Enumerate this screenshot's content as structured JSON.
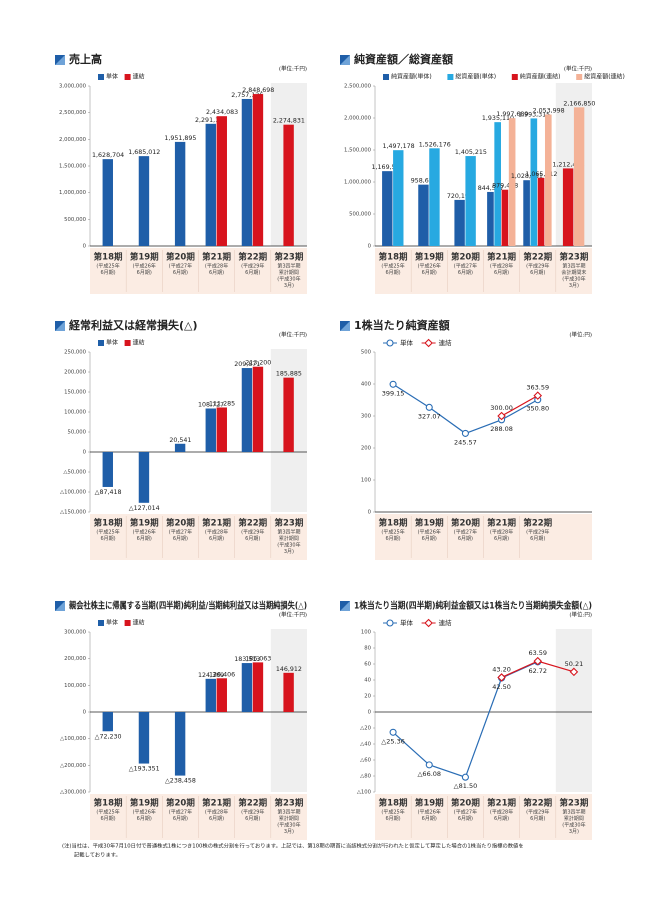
{
  "chart_data": [
    {
      "type": "bar",
      "title": "売上高",
      "unit": "(単位:千円)",
      "categories": [
        "第18期",
        "第19期",
        "第20期",
        "第21期",
        "第22期",
        "第23期"
      ],
      "sublabels": [
        [
          "(平成25年",
          "6月期)"
        ],
        [
          "(平成26年",
          "6月期)"
        ],
        [
          "(平成27年",
          "6月期)"
        ],
        [
          "(平成28年",
          "6月期)"
        ],
        [
          "(平成29年",
          "6月期)"
        ],
        [
          "第3四半期",
          "累計期間",
          "(平成30年",
          "3月)"
        ]
      ],
      "series": [
        {
          "name": "単体",
          "color": "#1f5ea8",
          "values": [
            1628704,
            1685012,
            1951895,
            2291152,
            2757126,
            null
          ],
          "value_labels": [
            "1,628,704",
            "1,685,012",
            "1,951,895",
            "2,291,152",
            "2,757,126",
            null
          ]
        },
        {
          "name": "連結",
          "color": "#d7141d",
          "values": [
            null,
            null,
            null,
            2434083,
            2848698,
            2274831
          ],
          "value_labels": [
            null,
            null,
            null,
            "2,434,083",
            "2,848,698",
            "2,274,831"
          ]
        }
      ],
      "ylim": [
        0,
        3000000
      ],
      "yticks": [
        0,
        {
          "value": 500000,
          "label": "500,000"
        },
        {
          "value": 1000000,
          "label": "1,000,000"
        },
        {
          "value": 1500000,
          "label": "1,500,000"
        },
        {
          "value": 2000000,
          "label": "2,000,000"
        },
        {
          "value": 2500000,
          "label": "2,500,000"
        },
        {
          "value": 3000000,
          "label": "3,000,000"
        }
      ]
    },
    {
      "type": "bar",
      "title": "純資産額／総資産額",
      "unit": "(単位:千円)",
      "categories": [
        "第18期",
        "第19期",
        "第20期",
        "第21期",
        "第22期",
        "第23期"
      ],
      "sublabels": [
        [
          "(平成25年",
          "6月期)"
        ],
        [
          "(平成26年",
          "6月期)"
        ],
        [
          "(平成27年",
          "6月期)"
        ],
        [
          "(平成28年",
          "6月期)"
        ],
        [
          "(平成29年",
          "6月期)"
        ],
        [
          "第3四半期",
          "会計期間末",
          "(平成30年",
          "3月)"
        ]
      ],
      "series": [
        {
          "name": "純資産額(単体)",
          "color": "#1f5ea8",
          "values": [
            1169564,
            958656,
            720198,
            844567,
            1028081,
            null
          ],
          "value_labels": [
            "1,169,564",
            "958,656",
            "720,198",
            "844,567",
            "1,028,081",
            null
          ]
        },
        {
          "name": "総資産額(単体)",
          "color": "#27a9e1",
          "values": [
            1497178,
            1526176,
            1405215,
            1935110,
            1993315,
            null
          ],
          "value_labels": [
            "1,497,178",
            "1,526,176",
            "1,405,215",
            "1,935,110",
            "1,993,315",
            null
          ]
        },
        {
          "name": "純資産額(連結)",
          "color": "#d7141d",
          "values": [
            null,
            null,
            null,
            879448,
            1065512,
            1212424
          ],
          "value_labels": [
            null,
            null,
            null,
            "879,448",
            "1,065,512",
            "1,212,424"
          ]
        },
        {
          "name": "総資産額(連結)",
          "color": "#f4b297",
          "values": [
            null,
            null,
            null,
            1997689,
            2053998,
            2166850
          ],
          "value_labels": [
            null,
            null,
            null,
            "1,997,689",
            "2,053,998",
            "2,166,850"
          ]
        }
      ],
      "ylim": [
        0,
        2500000
      ],
      "yticks": [
        0,
        {
          "value": 500000,
          "label": "500,000"
        },
        {
          "value": 1000000,
          "label": "1,000,000"
        },
        {
          "value": 1500000,
          "label": "1,500,000"
        },
        {
          "value": 2000000,
          "label": "2,000,000"
        },
        {
          "value": 2500000,
          "label": "2,500,000"
        }
      ]
    },
    {
      "type": "bar",
      "title": "経常利益又は経常損失(△)",
      "unit": "(単位:千円)",
      "categories": [
        "第18期",
        "第19期",
        "第20期",
        "第21期",
        "第22期",
        "第23期"
      ],
      "sublabels": [
        [
          "(平成25年",
          "6月期)"
        ],
        [
          "(平成26年",
          "6月期)"
        ],
        [
          "(平成27年",
          "6月期)"
        ],
        [
          "(平成28年",
          "6月期)"
        ],
        [
          "(平成29年",
          "6月期)"
        ],
        [
          "第3四半期",
          "累計期間",
          "(平成30年",
          "3月)"
        ]
      ],
      "series": [
        {
          "name": "単体",
          "color": "#1f5ea8",
          "values": [
            -87418,
            -127014,
            20541,
            108727,
            209871,
            null
          ],
          "value_labels": [
            "△87,418",
            "△127,014",
            "20,541",
            "108,727",
            "209,871",
            null
          ]
        },
        {
          "name": "連結",
          "color": "#d7141d",
          "values": [
            null,
            null,
            null,
            111285,
            213200,
            185885
          ],
          "value_labels": [
            null,
            null,
            null,
            "111,285",
            "213,200",
            "185,885"
          ]
        }
      ],
      "ylim": [
        -150000,
        250000
      ],
      "yticks": [
        {
          "value": -150000,
          "label": "△150,000"
        },
        {
          "value": -100000,
          "label": "△100,000"
        },
        {
          "value": -50000,
          "label": "△50,000"
        },
        0,
        {
          "value": 50000,
          "label": "50,000"
        },
        {
          "value": 100000,
          "label": "100,000"
        },
        {
          "value": 150000,
          "label": "150,000"
        },
        {
          "value": 200000,
          "label": "200,000"
        },
        {
          "value": 250000,
          "label": "250,000"
        }
      ]
    },
    {
      "type": "line",
      "title": "1株当たり純資産額",
      "unit": "(単位:円)",
      "categories": [
        "第18期",
        "第19期",
        "第20期",
        "第21期",
        "第22期"
      ],
      "sublabels": [
        [
          "(平成25年",
          "6月期)"
        ],
        [
          "(平成26年",
          "6月期)"
        ],
        [
          "(平成27年",
          "6月期)"
        ],
        [
          "(平成28年",
          "6月期)"
        ],
        [
          "(平成29年",
          "6月期)"
        ]
      ],
      "series": [
        {
          "name": "単体",
          "color": "#2a6db5",
          "marker": "circle",
          "values": [
            399.15,
            327.07,
            245.57,
            288.08,
            350.8
          ],
          "value_labels": [
            "399.15",
            "327.07",
            "245.57",
            "288.08",
            "350.80"
          ]
        },
        {
          "name": "連結",
          "color": "#d7141d",
          "marker": "diamond",
          "values": [
            null,
            null,
            null,
            300.0,
            363.59
          ],
          "value_labels": [
            null,
            null,
            null,
            "300.00",
            "363.59"
          ]
        }
      ],
      "ylim": [
        0,
        500
      ],
      "yticks": [
        0,
        100,
        200,
        300,
        400,
        500
      ]
    },
    {
      "type": "bar",
      "title": "親会社株主に帰属する当期(四半期)純利益/当期純利益又は当期純損失(△)",
      "unit": "(単位:千円)",
      "categories": [
        "第18期",
        "第19期",
        "第20期",
        "第21期",
        "第22期",
        "第23期"
      ],
      "sublabels": [
        [
          "(平成25年",
          "6月期)"
        ],
        [
          "(平成26年",
          "6月期)"
        ],
        [
          "(平成27年",
          "6月期)"
        ],
        [
          "(平成28年",
          "6月期)"
        ],
        [
          "(平成29年",
          "6月期)"
        ],
        [
          "第3四半期",
          "累計期間",
          "(平成30年",
          "3月)"
        ]
      ],
      "series": [
        {
          "name": "単体",
          "color": "#1f5ea8",
          "values": [
            -72230,
            -193351,
            -238458,
            124369,
            183513,
            null
          ],
          "value_labels": [
            "△72,230",
            "△193,351",
            "△238,458",
            "124,369",
            "183,513",
            null
          ]
        },
        {
          "name": "連結",
          "color": "#d7141d",
          "values": [
            null,
            null,
            null,
            126406,
            186063,
            146912
          ],
          "value_labels": [
            null,
            null,
            null,
            "126,406",
            "186,063",
            "146,912"
          ]
        }
      ],
      "ylim": [
        -300000,
        300000
      ],
      "yticks": [
        {
          "value": -300000,
          "label": "△300,000"
        },
        {
          "value": -200000,
          "label": "△200,000"
        },
        {
          "value": -100000,
          "label": "△100,000"
        },
        0,
        {
          "value": 100000,
          "label": "100,000"
        },
        {
          "value": 200000,
          "label": "200,000"
        },
        {
          "value": 300000,
          "label": "300,000"
        }
      ]
    },
    {
      "type": "line",
      "title": "1株当たり当期(四半期)純利益金額又は1株当たり当期純損失金額(△)",
      "unit": "(単位:円)",
      "categories": [
        "第18期",
        "第19期",
        "第20期",
        "第21期",
        "第22期",
        "第23期"
      ],
      "sublabels": [
        [
          "(平成25年",
          "6月期)"
        ],
        [
          "(平成26年",
          "6月期)"
        ],
        [
          "(平成27年",
          "6月期)"
        ],
        [
          "(平成28年",
          "6月期)"
        ],
        [
          "(平成29年",
          "6月期)"
        ],
        [
          "第3四半期",
          "累計期間",
          "(平成30年",
          "3月)"
        ]
      ],
      "series": [
        {
          "name": "単体",
          "color": "#2a6db5",
          "marker": "circle",
          "values": [
            -25.36,
            -66.08,
            -81.5,
            42.5,
            62.72,
            null
          ],
          "value_labels": [
            "△25.36",
            "△66.08",
            "△81.50",
            "42.50",
            "62.72",
            null
          ]
        },
        {
          "name": "連結",
          "color": "#d7141d",
          "marker": "diamond",
          "values": [
            null,
            null,
            null,
            43.2,
            63.59,
            50.21
          ],
          "value_labels": [
            null,
            null,
            null,
            "43.20",
            "63.59",
            "50.21"
          ]
        }
      ],
      "ylim": [
        -100,
        100
      ],
      "yticks": [
        {
          "value": -100,
          "label": "△100"
        },
        {
          "value": -80,
          "label": "△80"
        },
        {
          "value": -60,
          "label": "△60"
        },
        {
          "value": -40,
          "label": "△40"
        },
        {
          "value": -20,
          "label": "△20"
        },
        0,
        20,
        40,
        60,
        80,
        100
      ]
    }
  ],
  "footnote": [
    "(注)当社は、平成30年7月10日付で普通株式1株につき100株の株式分割を行っております。上記では、第18期の期首に当該株式分割が行われたと仮定して算定した場合の1株当たり指標の数値を",
    "記載しております。"
  ]
}
